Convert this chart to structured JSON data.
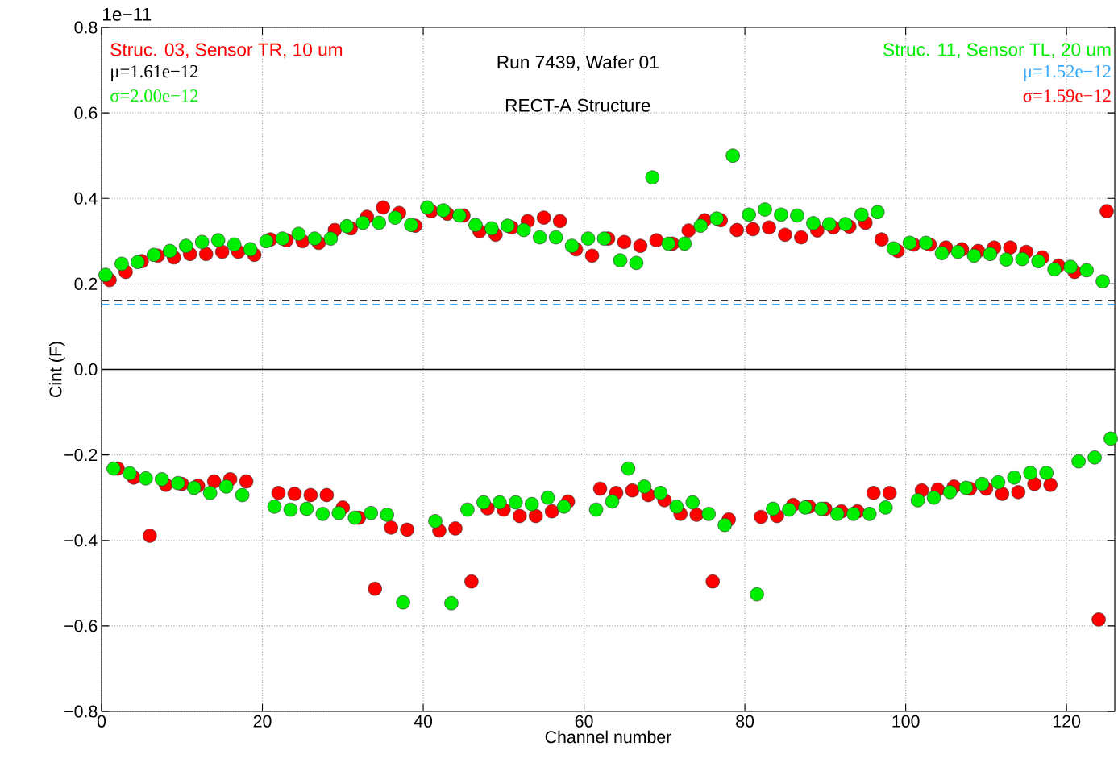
{
  "chart_data": {
    "type": "scatter",
    "xlabel": "Channel number",
    "ylabel": "Cint (F)",
    "annotations": [
      "1e−11",
      "Struc. 03, Sensor TR, 10 um",
      "μ=1.61e−12",
      "σ=2.00e−12",
      "Run 7439, Wafer 01",
      "RECT-A Structure",
      "Struc. 11, Sensor TL, 20 um",
      "μ=1.52e−12",
      "σ=1.59e−12"
    ],
    "xlim": [
      0,
      126
    ],
    "ylim": [
      -0.8,
      0.8
    ],
    "xticks": [
      0,
      20,
      40,
      60,
      80,
      100,
      120
    ],
    "yticks": [
      {
        "value": -0.8,
        "label": "−0.8"
      },
      {
        "value": -0.6,
        "label": "−0.6"
      },
      {
        "value": -0.4,
        "label": "−0.4"
      },
      {
        "value": -0.2,
        "label": "−0.2"
      },
      {
        "value": 0,
        "label": "0.0"
      },
      0.2,
      0.4,
      0.6,
      0.8
    ],
    "grid": true,
    "ref_lines": [
      {
        "axis": "y",
        "value": 0,
        "color": "#000000",
        "line_style": "solid"
      },
      {
        "axis": "y",
        "value": 0.161,
        "color": "#000000",
        "line_style": "dashed"
      },
      {
        "axis": "y",
        "value": 0.152,
        "color": "#33aaff",
        "line_style": "dashed"
      }
    ],
    "series": [
      {
        "color": "#ff0000",
        "x": [
          1,
          3,
          5,
          7,
          9,
          11,
          13,
          15,
          17,
          19,
          21,
          23,
          25,
          27,
          29,
          31,
          33,
          35,
          37,
          39,
          41,
          43,
          45,
          47,
          49,
          51,
          53,
          55,
          57,
          59,
          61,
          63,
          65,
          67,
          69,
          71,
          73,
          75,
          77,
          79,
          81,
          83,
          85,
          87,
          89,
          91,
          93,
          95,
          97,
          99,
          101,
          103,
          105,
          107,
          109,
          111,
          113,
          115,
          117,
          119,
          121,
          125,
          2,
          4,
          6,
          8,
          10,
          12,
          14,
          16,
          18,
          22,
          24,
          26,
          28,
          30,
          32,
          34,
          36,
          38,
          42,
          44,
          46,
          48,
          50,
          52,
          54,
          56,
          58,
          62,
          64,
          66,
          68,
          70,
          72,
          74,
          76,
          78,
          82,
          84,
          86,
          88,
          90,
          92,
          94,
          96,
          98,
          102,
          104,
          106,
          108,
          110,
          112,
          114,
          116,
          118,
          124
        ],
        "values": [
          0.209,
          0.228,
          0.253,
          0.266,
          0.262,
          0.27,
          0.27,
          0.275,
          0.275,
          0.268,
          0.304,
          0.302,
          0.3,
          0.296,
          0.326,
          0.33,
          0.357,
          0.379,
          0.366,
          0.336,
          0.37,
          0.364,
          0.36,
          0.323,
          0.315,
          0.332,
          0.347,
          0.355,
          0.347,
          0.281,
          0.266,
          0.306,
          0.298,
          0.289,
          0.302,
          0.294,
          0.325,
          0.349,
          0.349,
          0.326,
          0.328,
          0.332,
          0.315,
          0.309,
          0.325,
          0.332,
          0.334,
          0.343,
          0.304,
          0.277,
          0.292,
          0.292,
          0.285,
          0.281,
          0.277,
          0.285,
          0.285,
          0.275,
          0.262,
          0.243,
          0.228,
          0.37,
          -0.232,
          -0.253,
          -0.389,
          -0.27,
          -0.268,
          -0.272,
          -0.262,
          -0.257,
          -0.262,
          -0.289,
          -0.291,
          -0.294,
          -0.294,
          -0.323,
          -0.347,
          -0.513,
          -0.37,
          -0.375,
          -0.377,
          -0.372,
          -0.496,
          -0.325,
          -0.328,
          -0.343,
          -0.343,
          -0.332,
          -0.309,
          -0.279,
          -0.289,
          -0.283,
          -0.294,
          -0.306,
          -0.338,
          -0.34,
          -0.496,
          -0.351,
          -0.345,
          -0.343,
          -0.317,
          -0.321,
          -0.326,
          -0.332,
          -0.332,
          -0.289,
          -0.289,
          -0.283,
          -0.281,
          -0.274,
          -0.279,
          -0.279,
          -0.291,
          -0.287,
          -0.268,
          -0.27,
          -0.585
        ]
      },
      {
        "color": "#00ee00",
        "x": [
          0.5,
          2.5,
          4.5,
          6.5,
          8.5,
          10.5,
          12.5,
          14.5,
          16.5,
          18.5,
          20.5,
          22.5,
          24.5,
          26.5,
          28.5,
          30.5,
          32.5,
          34.5,
          36.5,
          38.5,
          40.5,
          42.5,
          44.5,
          46.5,
          48.5,
          50.5,
          52.5,
          54.5,
          56.5,
          58.5,
          60.5,
          62.5,
          64.5,
          66.5,
          68.5,
          70.5,
          72.5,
          74.5,
          76.5,
          78.5,
          80.5,
          82.5,
          84.5,
          86.5,
          88.5,
          90.5,
          92.5,
          94.5,
          96.5,
          98.5,
          100.5,
          102.5,
          104.5,
          106.5,
          108.5,
          110.5,
          112.5,
          114.5,
          116.5,
          118.5,
          120.5,
          122.5,
          124.5,
          1.5,
          3.5,
          5.5,
          7.5,
          9.5,
          11.5,
          13.5,
          15.5,
          17.5,
          21.5,
          23.5,
          25.5,
          27.5,
          29.5,
          31.5,
          33.5,
          35.5,
          37.5,
          41.5,
          43.5,
          45.5,
          47.5,
          49.5,
          51.5,
          53.5,
          55.5,
          57.5,
          61.5,
          63.5,
          65.5,
          67.5,
          69.5,
          71.5,
          73.5,
          75.5,
          77.5,
          81.5,
          83.5,
          85.5,
          87.5,
          89.5,
          91.5,
          93.5,
          95.5,
          97.5,
          101.5,
          103.5,
          105.5,
          107.5,
          109.5,
          111.5,
          113.5,
          115.5,
          117.5,
          121.5,
          123.5,
          125.5
        ],
        "values": [
          0.221,
          0.247,
          0.251,
          0.268,
          0.277,
          0.289,
          0.298,
          0.302,
          0.292,
          0.281,
          0.3,
          0.306,
          0.317,
          0.306,
          0.306,
          0.335,
          0.343,
          0.343,
          0.355,
          0.338,
          0.379,
          0.372,
          0.36,
          0.338,
          0.33,
          0.336,
          0.326,
          0.309,
          0.309,
          0.289,
          0.306,
          0.306,
          0.255,
          0.249,
          0.449,
          0.294,
          0.294,
          0.336,
          0.353,
          0.5,
          0.362,
          0.374,
          0.362,
          0.36,
          0.342,
          0.34,
          0.34,
          0.362,
          0.368,
          0.283,
          0.296,
          0.296,
          0.272,
          0.275,
          0.266,
          0.27,
          0.257,
          0.258,
          0.253,
          0.234,
          0.24,
          0.232,
          0.206,
          -0.232,
          -0.243,
          -0.255,
          -0.257,
          -0.266,
          -0.277,
          -0.289,
          -0.274,
          -0.294,
          -0.321,
          -0.328,
          -0.326,
          -0.338,
          -0.336,
          -0.347,
          -0.336,
          -0.34,
          -0.545,
          -0.355,
          -0.547,
          -0.328,
          -0.311,
          -0.311,
          -0.311,
          -0.315,
          -0.3,
          -0.321,
          -0.328,
          -0.309,
          -0.232,
          -0.274,
          -0.289,
          -0.321,
          -0.311,
          -0.338,
          -0.364,
          -0.526,
          -0.326,
          -0.328,
          -0.323,
          -0.326,
          -0.338,
          -0.338,
          -0.338,
          -0.323,
          -0.306,
          -0.3,
          -0.287,
          -0.277,
          -0.268,
          -0.264,
          -0.253,
          -0.242,
          -0.242,
          -0.215,
          -0.206,
          -0.162
        ]
      }
    ]
  }
}
